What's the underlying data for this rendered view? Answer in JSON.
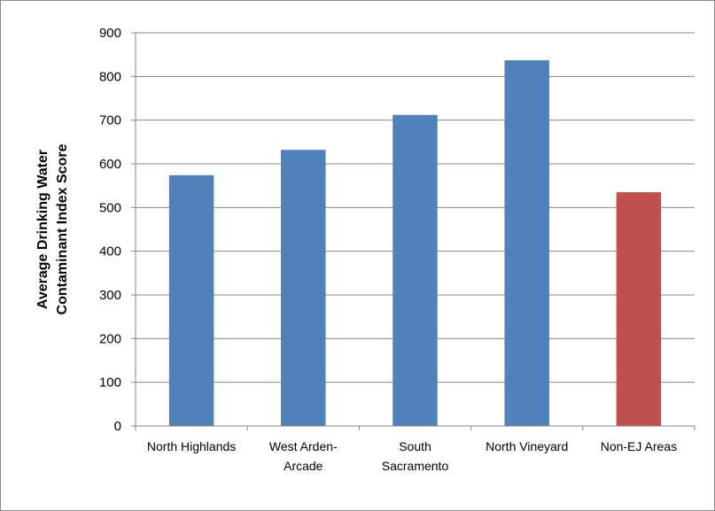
{
  "chart_data": {
    "type": "bar",
    "title": "",
    "xlabel": "",
    "ylabel_lines": [
      "Average Drinking Water",
      "Contaminant Index Score"
    ],
    "categories": [
      [
        "North Highlands"
      ],
      [
        "West Arden-",
        "Arcade"
      ],
      [
        "South",
        "Sacramento"
      ],
      [
        "North Vineyard"
      ],
      [
        "Non-EJ Areas"
      ]
    ],
    "values": [
      574,
      632,
      712,
      837,
      535
    ],
    "bar_colors": [
      "#4f81bd",
      "#4f81bd",
      "#4f81bd",
      "#4f81bd",
      "#c0504d"
    ],
    "ylim": [
      0,
      900
    ],
    "yticks": [
      0,
      100,
      200,
      300,
      400,
      500,
      600,
      700,
      800,
      900
    ],
    "grid": true,
    "legend": "none"
  }
}
